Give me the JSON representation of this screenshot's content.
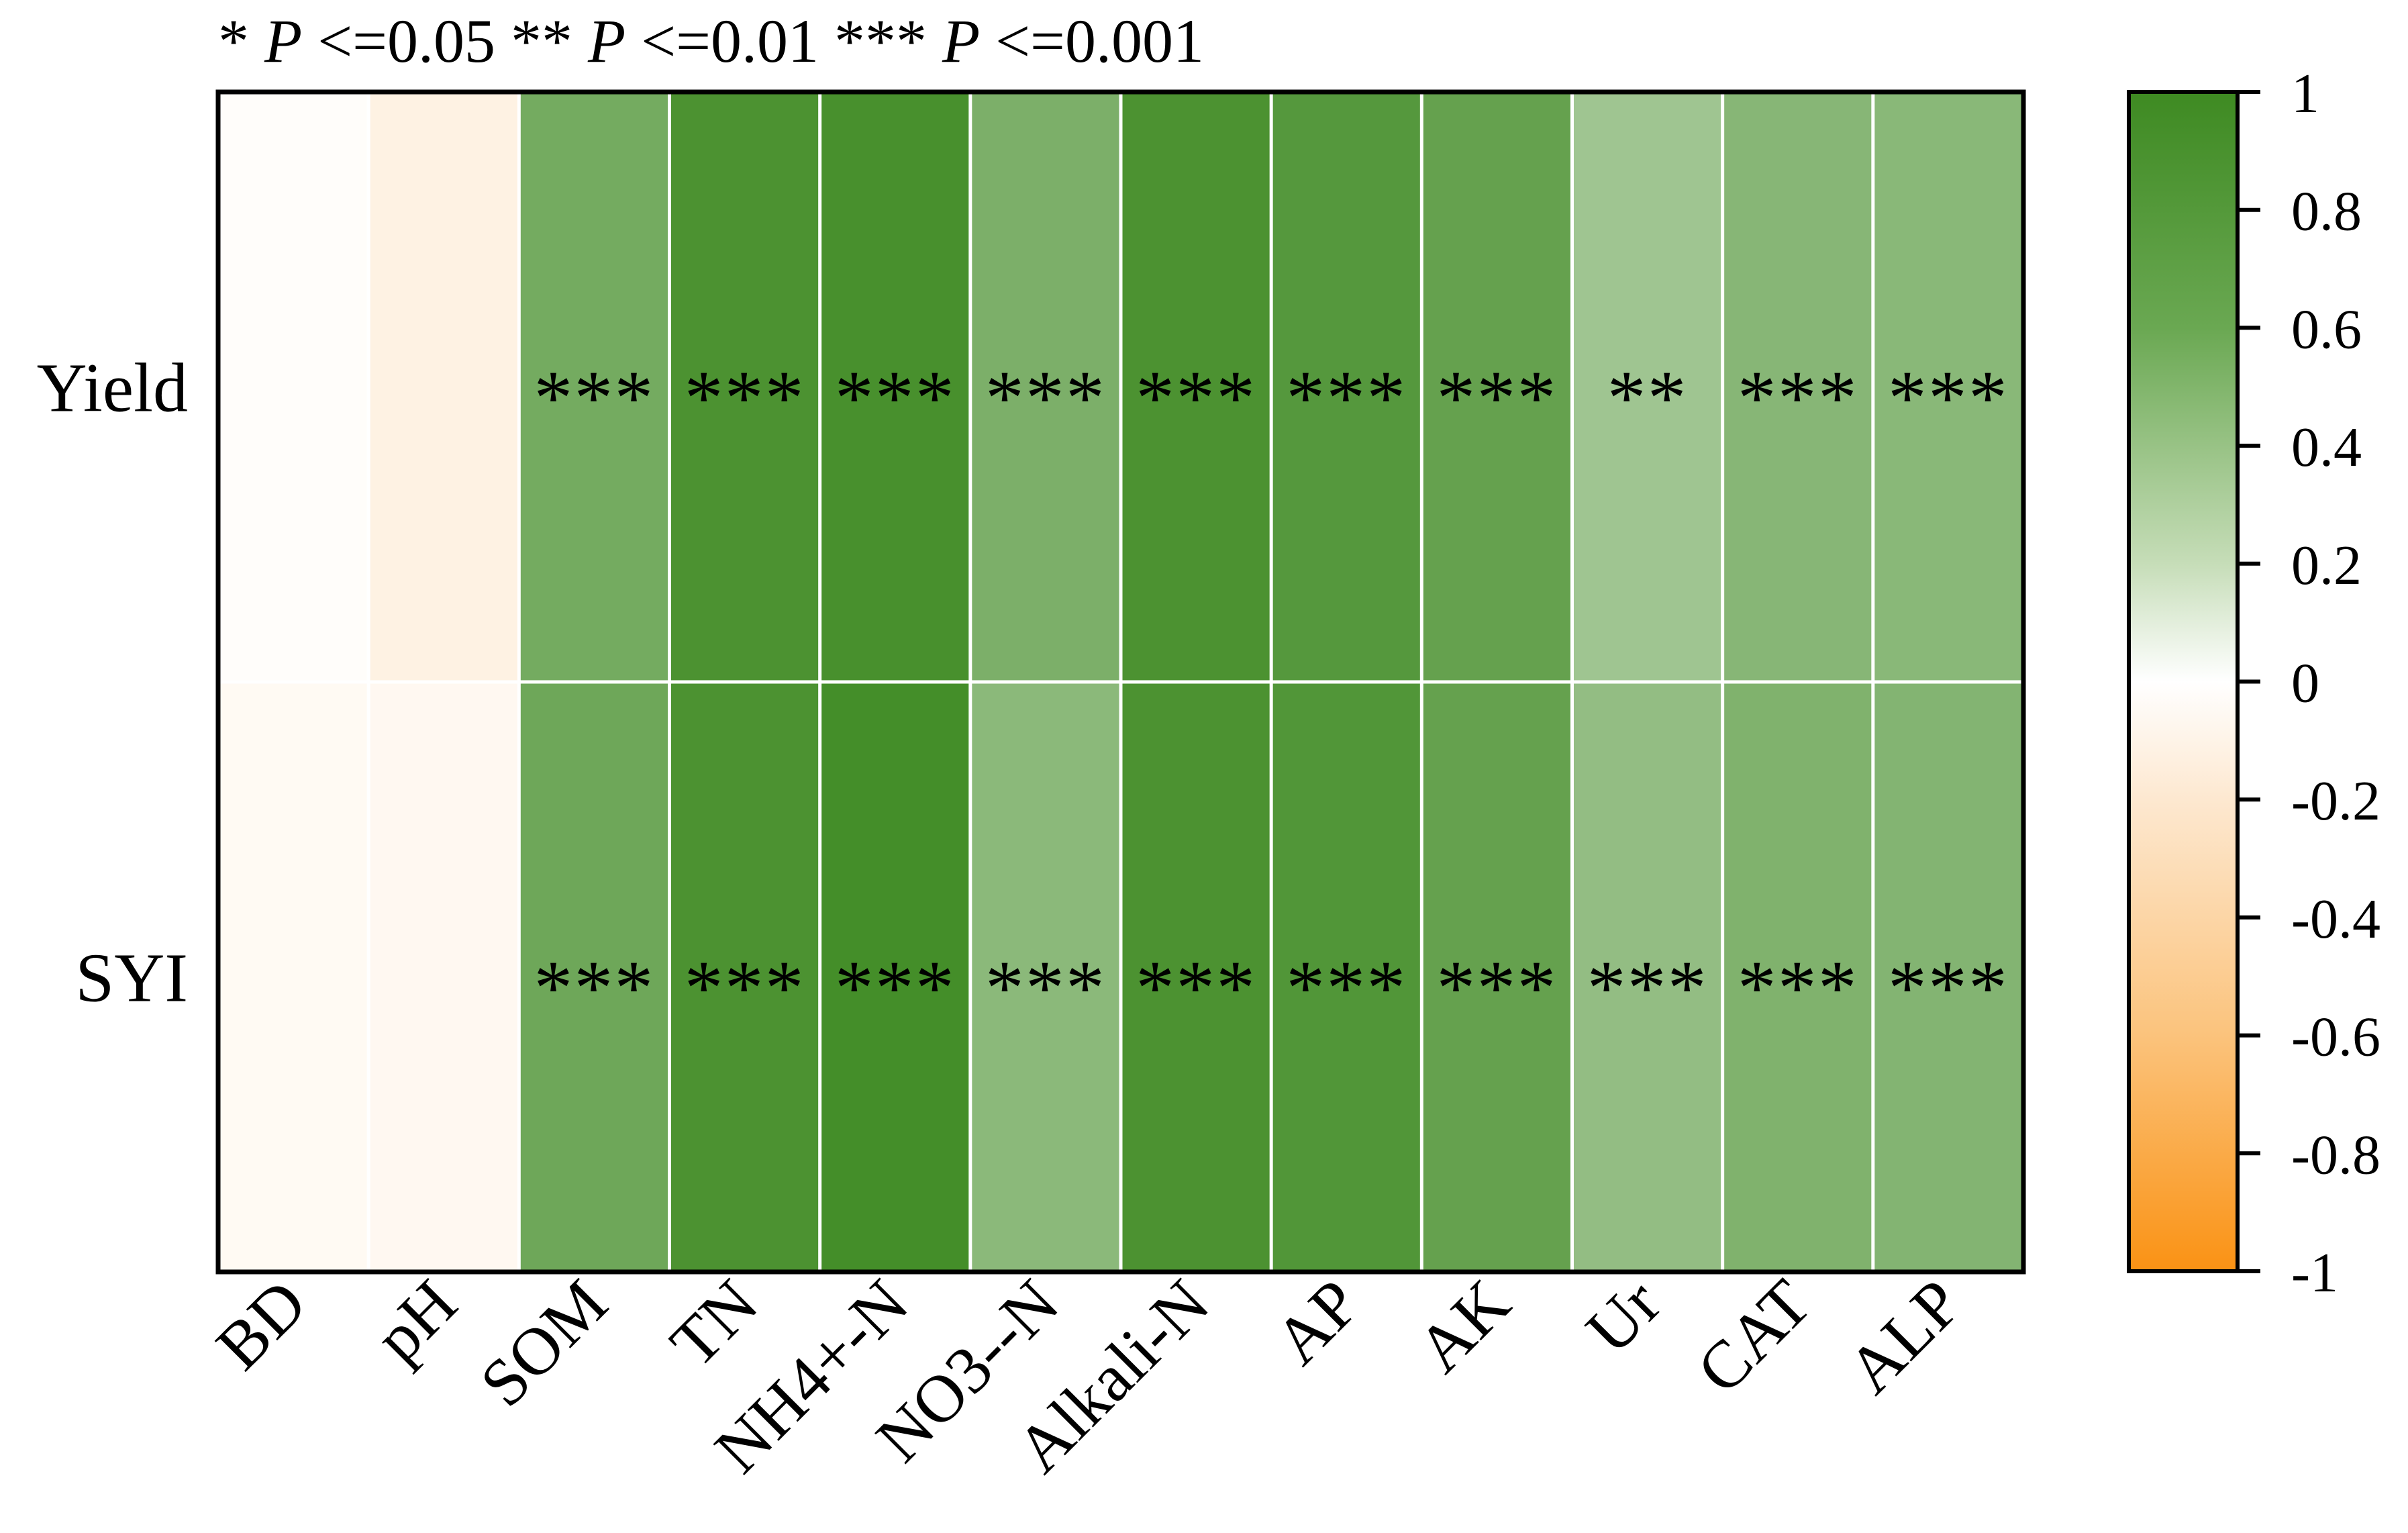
{
  "significance_legend": [
    {
      "stars": "*",
      "p_symbol": "P",
      "text": "<=0.05"
    },
    {
      "stars": "**",
      "p_symbol": "P",
      "text": "<=0.01"
    },
    {
      "stars": "***",
      "p_symbol": "P",
      "text": "<=0.001"
    }
  ],
  "colors": {
    "positive": "#3e8a22",
    "zero": "#ffffff",
    "negative": "#fa9214",
    "grid": "#ffffff",
    "border": "#000000"
  },
  "chart_data": {
    "type": "heatmap",
    "rows": [
      "Yield",
      "SYI"
    ],
    "columns": [
      "BD",
      "pH",
      "SOM",
      "TN",
      "NH4+-N",
      "NO3--N",
      "Alkali-N",
      "AP",
      "AK",
      "Ur",
      "CAT",
      "ALP"
    ],
    "values": [
      [
        -0.02,
        -0.12,
        0.72,
        0.93,
        0.95,
        0.68,
        0.93,
        0.88,
        0.8,
        0.5,
        0.62,
        0.61
      ],
      [
        -0.05,
        -0.06,
        0.75,
        0.93,
        0.97,
        0.6,
        0.93,
        0.9,
        0.8,
        0.56,
        0.66,
        0.64
      ]
    ],
    "significance": [
      [
        "",
        "",
        "***",
        "***",
        "***",
        "***",
        "***",
        "***",
        "***",
        "**",
        "***",
        "***"
      ],
      [
        "",
        "",
        "***",
        "***",
        "***",
        "***",
        "***",
        "***",
        "***",
        "***",
        "***",
        "***"
      ]
    ],
    "colorbar": {
      "range": [
        -1,
        1
      ],
      "ticks": [
        "1",
        "0.8",
        "0.6",
        "0.4",
        "0.2",
        "0",
        "-0.2",
        "-0.4",
        "-0.6",
        "-0.8",
        "-1"
      ],
      "tick_values": [
        1,
        0.8,
        0.6,
        0.4,
        0.2,
        0,
        -0.2,
        -0.4,
        -0.6,
        -0.8,
        -1
      ]
    }
  }
}
